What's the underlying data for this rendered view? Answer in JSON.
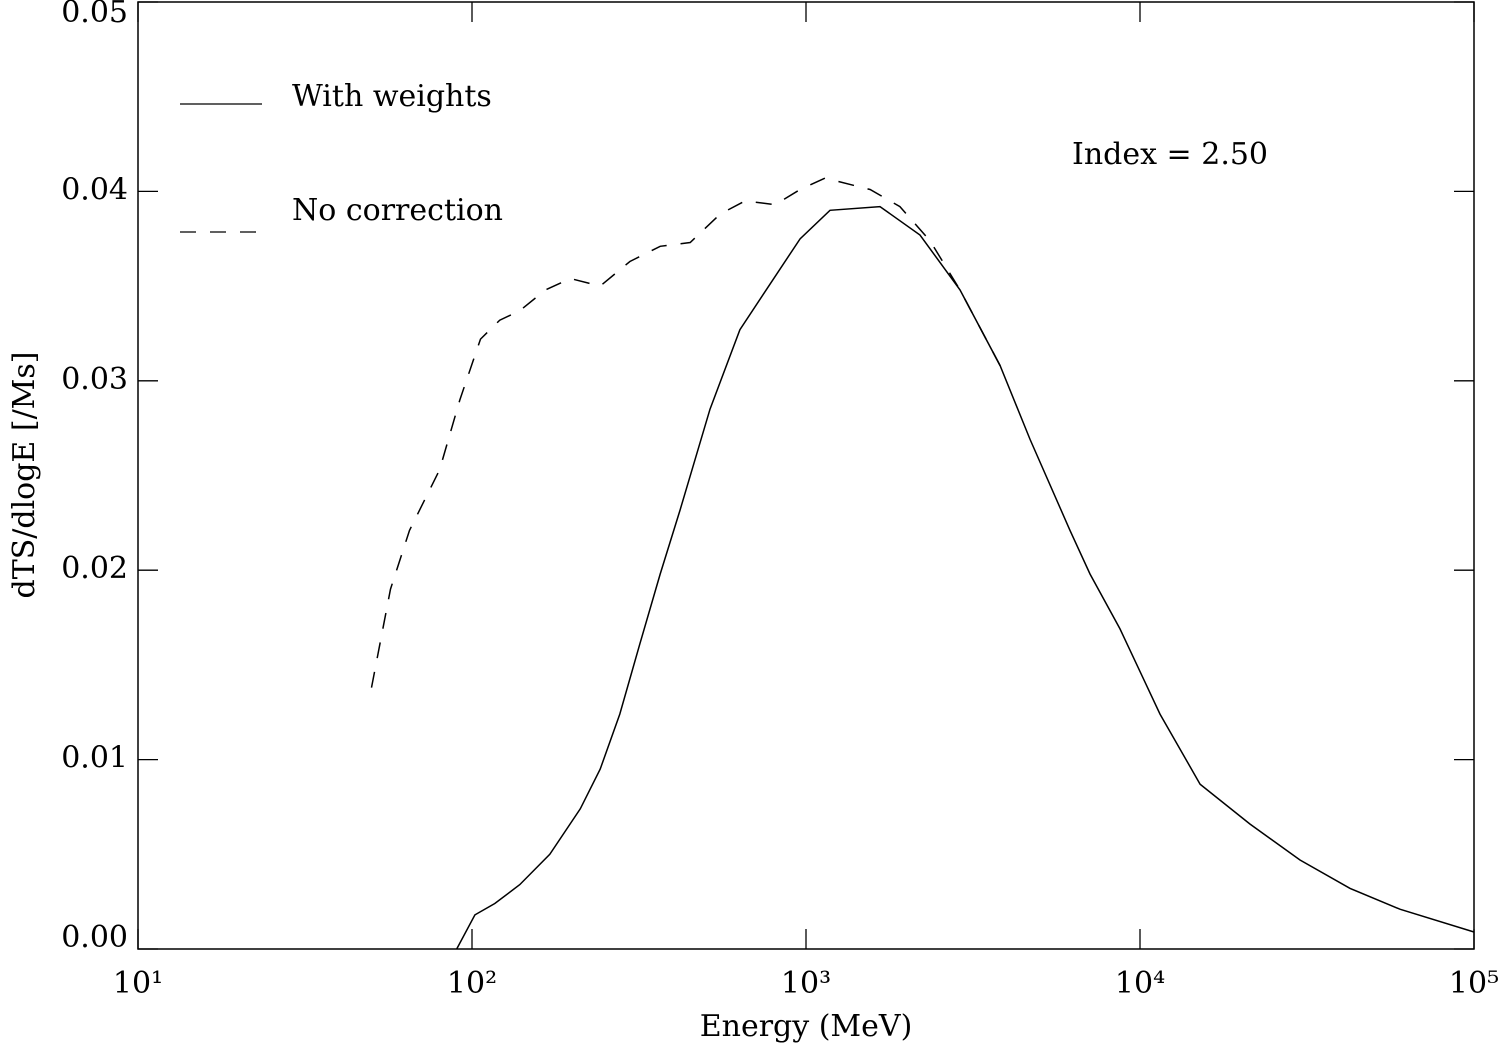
{
  "chart_data": {
    "type": "line",
    "xlabel": "Energy (MeV)",
    "ylabel": "dTS/dlogE [/Ms]",
    "annotation": "Index = 2.50",
    "log_x": true,
    "legend": "upper left",
    "xlim": [
      10,
      100000
    ],
    "xticks": [
      {
        "value": 10,
        "label": "10¹"
      },
      {
        "value": 100,
        "label": "10²"
      },
      {
        "value": 1000,
        "label": "10³"
      },
      {
        "value": 10000,
        "label": "10⁴"
      },
      {
        "value": 100000,
        "label": "10⁵"
      }
    ],
    "ylim": [
      0,
      0.05
    ],
    "yticks": [
      {
        "value": 0,
        "label": "0.00"
      },
      0.01,
      0.02,
      0.03,
      0.04,
      0.05
    ],
    "series": [
      {
        "name": "With weights",
        "color": "#000000",
        "dash": "solid",
        "x": [
          90,
          102,
          117,
          139,
          171,
          211,
          242,
          277,
          318,
          366,
          420,
          516,
          634,
          780,
          960,
          1180,
          1666,
          2195,
          2892,
          3811,
          4688,
          6170,
          7085,
          8715,
          11480,
          15130,
          21330,
          30130,
          42560,
          60000,
          100000
        ],
        "values": [
          0,
          0.0018,
          0.0024,
          0.0034,
          0.005,
          0.0074,
          0.0095,
          0.0124,
          0.0161,
          0.0198,
          0.0232,
          0.0285,
          0.0327,
          0.0351,
          0.0375,
          0.039,
          0.0392,
          0.0377,
          0.0348,
          0.0308,
          0.0269,
          0.0221,
          0.0198,
          0.0169,
          0.0124,
          0.0087,
          0.0066,
          0.0047,
          0.0032,
          0.0021,
          0.0009
        ]
      },
      {
        "name": "No correction",
        "color": "#000000",
        "dash": "dashed",
        "x": [
          50,
          57,
          65,
          80,
          92,
          106,
          121,
          139,
          166,
          197,
          242,
          297,
          366,
          450,
          553,
          657,
          808,
          960,
          1140,
          1556,
          1911,
          2350,
          2892,
          3811
        ],
        "values": [
          0.0138,
          0.019,
          0.0221,
          0.0253,
          0.029,
          0.0322,
          0.0332,
          0.0337,
          0.0348,
          0.0354,
          0.035,
          0.0363,
          0.0371,
          0.0373,
          0.0388,
          0.0395,
          0.0393,
          0.0401,
          0.0407,
          0.0401,
          0.0392,
          0.0374,
          0.0348,
          0.0308
        ]
      }
    ]
  }
}
